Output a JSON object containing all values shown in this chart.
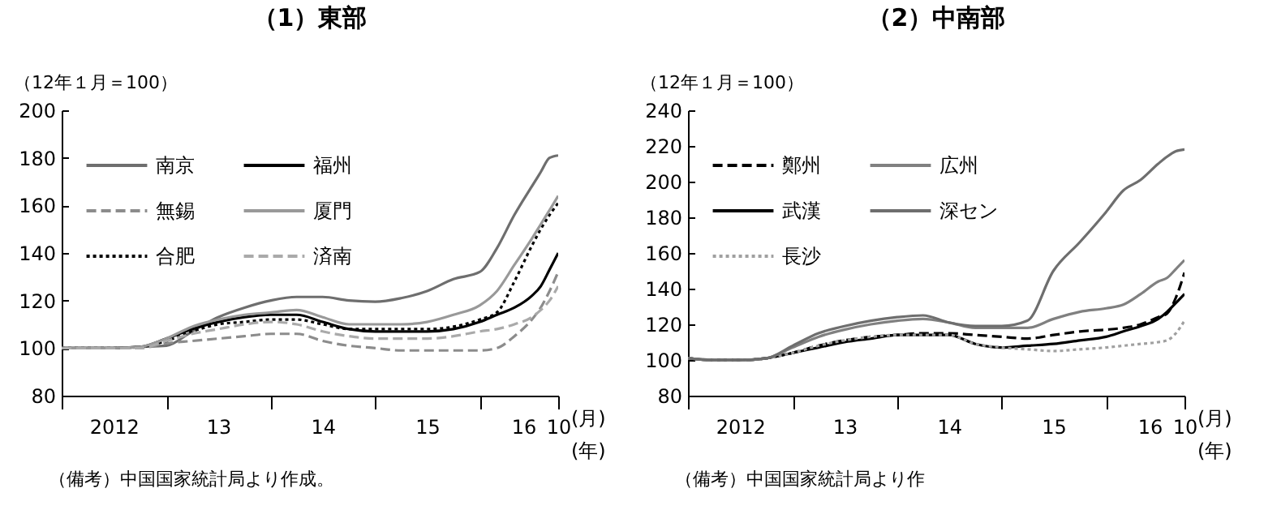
{
  "chart_data": [
    {
      "type": "line",
      "title": "（1）東部",
      "ylabel": "（12年１月＝100）",
      "legend": "top left",
      "grid": false,
      "x": [
        "2012-01",
        "2012-04",
        "2012-07",
        "2012-10",
        "2013-01",
        "2013-04",
        "2013-07",
        "2013-10",
        "2014-01",
        "2014-04",
        "2014-07",
        "2014-10",
        "2015-01",
        "2015-04",
        "2015-07",
        "2015-10",
        "2016-01",
        "2016-03",
        "2016-05",
        "2016-07",
        "2016-08",
        "2016-09",
        "2016-10"
      ],
      "xlim": [
        "2012-01",
        "2016-10"
      ],
      "xticks": [
        {
          "value": "2012-01",
          "label": null
        },
        {
          "value": "2012-07",
          "label": "2012"
        },
        {
          "value": "2013-01",
          "label": null
        },
        {
          "value": "2013-07",
          "label": "13"
        },
        {
          "value": "2014-01",
          "label": null
        },
        {
          "value": "2014-07",
          "label": "14"
        },
        {
          "value": "2015-01",
          "label": null
        },
        {
          "value": "2015-07",
          "label": "15"
        },
        {
          "value": "2016-01",
          "label": null
        },
        {
          "value": "2016-06",
          "label": "16"
        },
        {
          "value": "2016-10",
          "label": "10"
        }
      ],
      "ylim": [
        80,
        200
      ],
      "yticks": [
        80,
        100,
        120,
        140,
        160,
        180,
        200
      ],
      "series": [
        {
          "name": "南京",
          "color": "#6e6e6e",
          "line_style": "solid",
          "values": [
            100,
            100,
            100,
            100.5,
            101,
            107,
            113,
            117,
            120,
            121.5,
            121.5,
            120,
            119.5,
            121,
            124,
            129,
            132,
            142,
            156,
            168,
            174,
            180,
            181
          ]
        },
        {
          "name": "無錫",
          "color": "#8c8c8c",
          "line_style": "dashed",
          "values": [
            100,
            100,
            100,
            100,
            102,
            103,
            104,
            105,
            106,
            106,
            103,
            101,
            100,
            99,
            99,
            99,
            99,
            100,
            105,
            112,
            117,
            124,
            132
          ]
        },
        {
          "name": "合肥",
          "color": "#000000",
          "line_style": "dotted",
          "values": [
            100,
            100,
            100,
            100.5,
            103,
            107,
            110,
            111,
            112,
            112,
            110,
            108,
            108,
            108,
            108,
            109,
            112,
            115,
            128,
            143,
            150,
            156,
            161
          ]
        },
        {
          "name": "福州",
          "color": "#000000",
          "line_style": "solid",
          "values": [
            100,
            100,
            100,
            100.5,
            104,
            108,
            111,
            113,
            114,
            114,
            111,
            108,
            107,
            107,
            107,
            108,
            111,
            114,
            117,
            122,
            126,
            133,
            140
          ]
        },
        {
          "name": "厦門",
          "color": "#999999",
          "line_style": "solid",
          "values": [
            100,
            100,
            100,
            100.5,
            104,
            109,
            112,
            114,
            115,
            116,
            113,
            110,
            110,
            110,
            111,
            114,
            118,
            124,
            135,
            146,
            152,
            158,
            164
          ]
        },
        {
          "name": "済南",
          "color": "#aaaaaa",
          "line_style": "dashed",
          "values": [
            100,
            100,
            100,
            100,
            103,
            106,
            108,
            110,
            111,
            110,
            107,
            105,
            104,
            104,
            104,
            105,
            107,
            108,
            110,
            113,
            116,
            120,
            126
          ]
        }
      ],
      "annotations": [
        "(月)",
        "(年)",
        "（備考）中国国家統計局より作成。"
      ]
    },
    {
      "type": "line",
      "title": "（2）中南部",
      "ylabel": "（12年１月＝100）",
      "legend": "top left",
      "grid": false,
      "x": [
        "2012-01",
        "2012-04",
        "2012-07",
        "2012-10",
        "2013-01",
        "2013-04",
        "2013-07",
        "2013-10",
        "2014-01",
        "2014-04",
        "2014-07",
        "2014-10",
        "2015-01",
        "2015-04",
        "2015-07",
        "2015-10",
        "2016-01",
        "2016-03",
        "2016-05",
        "2016-07",
        "2016-08",
        "2016-09",
        "2016-10"
      ],
      "xlim": [
        "2012-01",
        "2016-10"
      ],
      "xticks": [
        {
          "value": "2012-01",
          "label": null
        },
        {
          "value": "2012-07",
          "label": "2012"
        },
        {
          "value": "2013-01",
          "label": null
        },
        {
          "value": "2013-07",
          "label": "13"
        },
        {
          "value": "2014-01",
          "label": null
        },
        {
          "value": "2014-07",
          "label": "14"
        },
        {
          "value": "2015-01",
          "label": null
        },
        {
          "value": "2015-07",
          "label": "15"
        },
        {
          "value": "2016-01",
          "label": null
        },
        {
          "value": "2016-06",
          "label": "16"
        },
        {
          "value": "2016-10",
          "label": "10"
        }
      ],
      "ylim": [
        80,
        240
      ],
      "yticks": [
        80,
        100,
        120,
        140,
        160,
        180,
        200,
        220,
        240
      ],
      "series": [
        {
          "name": "鄭州",
          "color": "#000000",
          "line_style": "dashed",
          "values": [
            101,
            100,
            100,
            101,
            104,
            108,
            111,
            113,
            114,
            115,
            115,
            114,
            113,
            112,
            114,
            116,
            117,
            118,
            120,
            124,
            126,
            135,
            149
          ]
        },
        {
          "name": "武漢",
          "color": "#000000",
          "line_style": "solid",
          "values": [
            101,
            100,
            100,
            101,
            104,
            107,
            110,
            112,
            114,
            114,
            114,
            109,
            107,
            108,
            109,
            111,
            113,
            116,
            119,
            123,
            127,
            132,
            137
          ]
        },
        {
          "name": "長沙",
          "color": "#a0a0a0",
          "line_style": "dotted",
          "values": [
            101,
            100,
            100,
            101,
            104,
            108,
            111,
            113,
            114,
            114,
            114,
            109,
            107,
            106,
            105,
            106,
            107,
            108,
            109,
            110,
            111,
            115,
            122
          ]
        },
        {
          "name": "広州",
          "color": "#808080",
          "line_style": "solid",
          "values": [
            101,
            100,
            100,
            101,
            107,
            113,
            117,
            120,
            122,
            123,
            121,
            118,
            118,
            118,
            123,
            127,
            129,
            131,
            137,
            144,
            146,
            151,
            156
          ]
        },
        {
          "name": "深セン",
          "color": "#6e6e6e",
          "line_style": "solid",
          "values": [
            101,
            100,
            100,
            101,
            108,
            115,
            119,
            122,
            124,
            125,
            121,
            119,
            119,
            122,
            150,
            166,
            183,
            195,
            201,
            210,
            214,
            217,
            218
          ]
        }
      ],
      "annotations": [
        "(月)",
        "(年)",
        "（備考）中国国家統計局より作"
      ]
    }
  ]
}
